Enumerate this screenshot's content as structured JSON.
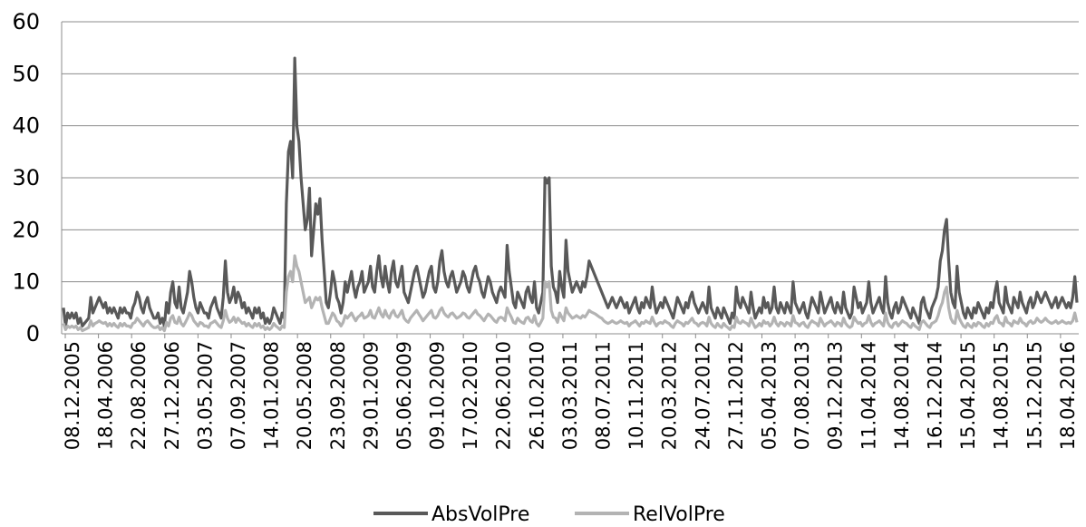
{
  "chart_data": {
    "type": "line",
    "title": "",
    "xlabel": "",
    "ylabel": "",
    "ylim": [
      0,
      60
    ],
    "yticks": [
      0,
      10,
      20,
      30,
      40,
      50,
      60
    ],
    "grid": "horizontal",
    "legend": "bottom",
    "x_tick_labels": [
      "08.12.2005",
      "18.04.2006",
      "22.08.2006",
      "27.12.2006",
      "03.05.2007",
      "07.09.2007",
      "14.01.2008",
      "20.05.2008",
      "23.09.2008",
      "29.01.2009",
      "05.06.2009",
      "09.10.2009",
      "17.02.2010",
      "22.06.2010",
      "26.10.2010",
      "03.03.2011",
      "08.07.2011",
      "10.11.2011",
      "20.03.2012",
      "24.07.2012",
      "27.11.2012",
      "05.04.2013",
      "07.08.2013",
      "09.12.2013",
      "11.04.2014",
      "14.08.2014",
      "16.12.2014",
      "15.04.2015",
      "14.08.2015",
      "15.12.2015",
      "18.04.2016"
    ],
    "series": [
      {
        "name": "AbsVolPre",
        "color": "#595959",
        "values": [
          5,
          1.5,
          4,
          3,
          4,
          3,
          4,
          2,
          3,
          1.5,
          2,
          2.5,
          3,
          7,
          4,
          5,
          6,
          7,
          6,
          5,
          6,
          4,
          5,
          4,
          5,
          4,
          3,
          5,
          4,
          5,
          4,
          4,
          3,
          5,
          6,
          8,
          7,
          5,
          4,
          6,
          7,
          5,
          4,
          3,
          3,
          4,
          2,
          3,
          1.5,
          6,
          4,
          8,
          10,
          6,
          5,
          9,
          5,
          4,
          6,
          8,
          12,
          10,
          7,
          5,
          4,
          6,
          5,
          4,
          4,
          3,
          5,
          6,
          7,
          5,
          4,
          3,
          7,
          14,
          8,
          6,
          7,
          9,
          6,
          8,
          7,
          5,
          6,
          4,
          5,
          4,
          3,
          5,
          4,
          5,
          3,
          4,
          2,
          3,
          2,
          3,
          5,
          4,
          3,
          2,
          4,
          3,
          25,
          35,
          37,
          30,
          53,
          40,
          37,
          30,
          25,
          20,
          22,
          28,
          15,
          20,
          25,
          23,
          26,
          18,
          12,
          6,
          5,
          8,
          12,
          10,
          7,
          6,
          4,
          6,
          10,
          8,
          10,
          12,
          9,
          7,
          9,
          10,
          12,
          8,
          9,
          10,
          13,
          9,
          8,
          12,
          15,
          11,
          9,
          13,
          10,
          8,
          12,
          14,
          10,
          9,
          11,
          13,
          8,
          7,
          6,
          8,
          10,
          12,
          13,
          11,
          9,
          7,
          8,
          10,
          12,
          13,
          9,
          8,
          10,
          14,
          16,
          12,
          10,
          9,
          11,
          12,
          10,
          8,
          9,
          10,
          12,
          11,
          9,
          8,
          10,
          12,
          13,
          11,
          10,
          8,
          7,
          9,
          11,
          10,
          8,
          7,
          6,
          8,
          9,
          8,
          7,
          17,
          12,
          9,
          6,
          5,
          8,
          7,
          6,
          5,
          8,
          9,
          7,
          6,
          10,
          5,
          4,
          6,
          8,
          30,
          29,
          30,
          13,
          9,
          8,
          6,
          12,
          9,
          7,
          18,
          12,
          10,
          8,
          9,
          10,
          9,
          8,
          10,
          9,
          11,
          14,
          13,
          12,
          11,
          10,
          9,
          8,
          7,
          6,
          5,
          6,
          7,
          6,
          5,
          6,
          7,
          6,
          5,
          6,
          4,
          5,
          6,
          7,
          5,
          4,
          6,
          5,
          7,
          6,
          5,
          9,
          6,
          4,
          5,
          6,
          5,
          7,
          6,
          5,
          4,
          3,
          5,
          7,
          6,
          5,
          4,
          6,
          5,
          7,
          8,
          6,
          5,
          4,
          5,
          6,
          5,
          4,
          9,
          5,
          4,
          3,
          5,
          4,
          3,
          5,
          4,
          3,
          2,
          4,
          3,
          9,
          6,
          5,
          7,
          6,
          5,
          4,
          8,
          5,
          3,
          4,
          5,
          4,
          7,
          5,
          6,
          4,
          5,
          9,
          5,
          4,
          6,
          5,
          4,
          6,
          5,
          4,
          10,
          6,
          5,
          4,
          5,
          6,
          4,
          3,
          5,
          7,
          6,
          5,
          4,
          8,
          6,
          4,
          5,
          6,
          7,
          5,
          4,
          6,
          5,
          4,
          8,
          5,
          4,
          3,
          4,
          9,
          7,
          5,
          6,
          4,
          5,
          6,
          10,
          6,
          4,
          5,
          6,
          7,
          5,
          4,
          11,
          6,
          4,
          3,
          5,
          6,
          4,
          5,
          7,
          6,
          5,
          4,
          3,
          5,
          4,
          3,
          2,
          6,
          7,
          5,
          4,
          3,
          5,
          6,
          7,
          9,
          14,
          16,
          20,
          22,
          14,
          8,
          6,
          5,
          13,
          8,
          6,
          4,
          3,
          5,
          4,
          3,
          5,
          4,
          6,
          5,
          4,
          3,
          5,
          4,
          6,
          5,
          8,
          10,
          6,
          5,
          4,
          9,
          6,
          5,
          4,
          7,
          6,
          5,
          8,
          6,
          5,
          4,
          6,
          7,
          5,
          6,
          8,
          7,
          6,
          7,
          8,
          7,
          6,
          5,
          6,
          7,
          5,
          6,
          7,
          6,
          5,
          6,
          5,
          7,
          11,
          6
        ]
      },
      {
        "name": "RelVolPre",
        "color": "#b3b3b3",
        "values": [
          2,
          0.8,
          1.5,
          1.2,
          1.5,
          1.2,
          1.5,
          0.8,
          1.2,
          0.6,
          0.8,
          1,
          1.2,
          2.5,
          1.5,
          2,
          2.2,
          2.5,
          2.2,
          2,
          2.2,
          1.5,
          2,
          1.5,
          2,
          1.5,
          1.2,
          2,
          1.5,
          2,
          1.5,
          1.5,
          1.2,
          2,
          2.2,
          3,
          2.5,
          2,
          1.5,
          2.2,
          2.5,
          2,
          1.5,
          1.2,
          1.2,
          1.5,
          0.8,
          1.2,
          0.6,
          2.2,
          1.5,
          3,
          3.5,
          2.2,
          2,
          3.2,
          2,
          1.5,
          2.2,
          3,
          4,
          3.5,
          2.5,
          2,
          1.5,
          2.2,
          2,
          1.5,
          1.5,
          1.2,
          2,
          2.2,
          2.5,
          2,
          1.5,
          1.2,
          2.5,
          4.5,
          3,
          2.2,
          2.5,
          3.2,
          2.2,
          3,
          2.5,
          2,
          2.2,
          1.5,
          2,
          1.5,
          1.2,
          2,
          1.5,
          2,
          1.2,
          1.5,
          0.8,
          1.2,
          0.8,
          1.2,
          2,
          1.5,
          1.2,
          0.8,
          1.5,
          1.2,
          8,
          11,
          12,
          10,
          15,
          13,
          12,
          10,
          8,
          6,
          6.5,
          7,
          5,
          6,
          7,
          6.5,
          7,
          5,
          3.5,
          2,
          2,
          3,
          4,
          3.5,
          2.5,
          2.2,
          1.5,
          2.2,
          3.5,
          3,
          3.5,
          4,
          3.2,
          2.5,
          3.2,
          3.5,
          4,
          3,
          3.2,
          3.5,
          4.5,
          3.2,
          3,
          4,
          5,
          3.8,
          3.2,
          4.5,
          3.5,
          3,
          4,
          4.5,
          3.5,
          3.2,
          3.8,
          4.5,
          3,
          2.5,
          2.2,
          3,
          3.5,
          4,
          4.5,
          3.8,
          3.2,
          2.5,
          3,
          3.5,
          4,
          4.5,
          3.2,
          3,
          3.5,
          4.5,
          5,
          4,
          3.5,
          3.2,
          3.8,
          4,
          3.5,
          3,
          3.2,
          3.5,
          4,
          3.8,
          3.2,
          3,
          3.5,
          4,
          4.5,
          3.8,
          3.5,
          3,
          2.5,
          3.2,
          3.8,
          3.5,
          3,
          2.5,
          2.2,
          3,
          3.2,
          3,
          2.5,
          5,
          4,
          3.2,
          2.2,
          2,
          3,
          2.5,
          2.2,
          2,
          3,
          3.2,
          2.5,
          2.2,
          3.5,
          2,
          1.5,
          2.2,
          3,
          10,
          9,
          10,
          4.5,
          3.2,
          3,
          2.2,
          4,
          3.2,
          2.5,
          5,
          4,
          3.5,
          3,
          3.2,
          3.5,
          3.2,
          3,
          3.5,
          3.2,
          3.8,
          4.5,
          4.2,
          4,
          3.8,
          3.5,
          3.2,
          3,
          2.5,
          2.2,
          2,
          2.2,
          2.5,
          2.2,
          2,
          2.2,
          2.5,
          2.2,
          2,
          2.2,
          1.5,
          2,
          2.2,
          2.5,
          2,
          1.5,
          2.2,
          2,
          2.5,
          2.2,
          2,
          3.2,
          2.2,
          1.5,
          2,
          2.2,
          2,
          2.5,
          2.2,
          2,
          1.5,
          1.2,
          2,
          2.5,
          2.2,
          2,
          1.5,
          2.2,
          2,
          2.5,
          3,
          2.2,
          2,
          1.5,
          2,
          2.2,
          2,
          1.5,
          3.2,
          2,
          1.5,
          1.2,
          2,
          1.5,
          1.2,
          2,
          1.5,
          1.2,
          0.8,
          1.5,
          1.2,
          3.2,
          2.2,
          2,
          2.5,
          2.2,
          2,
          1.5,
          3,
          2,
          1.2,
          1.5,
          2,
          1.5,
          2.5,
          2,
          2.2,
          1.5,
          2,
          3.2,
          2,
          1.5,
          2.2,
          2,
          1.5,
          2.2,
          2,
          1.5,
          3.5,
          2.2,
          2,
          1.5,
          2,
          2.2,
          1.5,
          1.2,
          2,
          2.5,
          2.2,
          2,
          1.5,
          3,
          2.2,
          1.5,
          2,
          2.2,
          2.5,
          2,
          1.5,
          2.2,
          2,
          1.5,
          3,
          2,
          1.5,
          1.2,
          1.5,
          3.2,
          2.5,
          2,
          2.2,
          1.5,
          2,
          2.2,
          3.5,
          2.2,
          1.5,
          2,
          2.2,
          2.5,
          2,
          1.5,
          4,
          2.2,
          1.5,
          1.2,
          2,
          2.2,
          1.5,
          2,
          2.5,
          2.2,
          2,
          1.5,
          1.2,
          2,
          1.5,
          1.2,
          0.8,
          2.2,
          2.5,
          2,
          1.5,
          1.2,
          2,
          2.2,
          2.5,
          3.5,
          5,
          6,
          8,
          9,
          5,
          3,
          2.2,
          2,
          4.5,
          3,
          2.2,
          1.5,
          1.2,
          2,
          1.5,
          1.2,
          2,
          1.5,
          2.2,
          2,
          1.5,
          1.2,
          2,
          1.5,
          2.2,
          2,
          3,
          3.5,
          2.2,
          2,
          1.5,
          3.2,
          2.2,
          2,
          1.5,
          2.5,
          2.2,
          2,
          3,
          2.2,
          2,
          1.5,
          2.2,
          2.5,
          2,
          2.2,
          3,
          2.5,
          2.2,
          2.5,
          3,
          2.5,
          2.2,
          2,
          2.2,
          2.5,
          2,
          2.2,
          2.5,
          2.2,
          2,
          2.2,
          2,
          2.5,
          4,
          2.2
        ]
      }
    ]
  }
}
